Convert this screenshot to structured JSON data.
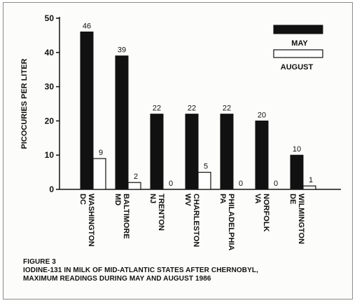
{
  "chart_data": {
    "type": "bar",
    "ylabel": "PICOCURIES PER LITER",
    "ylim": [
      0,
      50
    ],
    "yticks": [
      0,
      10,
      20,
      30,
      40,
      50
    ],
    "categories": [
      [
        "WASHINGTON",
        "DC"
      ],
      [
        "BALTIMORE",
        "MD"
      ],
      [
        "TRENTON",
        "NJ"
      ],
      [
        "CHARLESTON",
        "WV"
      ],
      [
        "PHILADELPHIA",
        "PA"
      ],
      [
        "NORFOLK",
        "VA"
      ],
      [
        "WILMINGTON",
        "DE"
      ]
    ],
    "series": [
      {
        "name": "MAY",
        "color": "#111111",
        "values": [
          46,
          39,
          22,
          22,
          22,
          20,
          10
        ]
      },
      {
        "name": "AUGUST",
        "color": "#ffffff",
        "values": [
          9,
          2,
          0,
          5,
          0,
          0,
          1
        ]
      }
    ],
    "legend_position": "top-right",
    "grid": false
  },
  "caption": {
    "figure": "FIGURE 3",
    "line1": "IODINE-131 IN MILK OF MID-ATLANTIC STATES AFTER CHERNOBYL,",
    "line2": "MAXIMUM READINGS DURING MAY AND AUGUST 1986"
  }
}
